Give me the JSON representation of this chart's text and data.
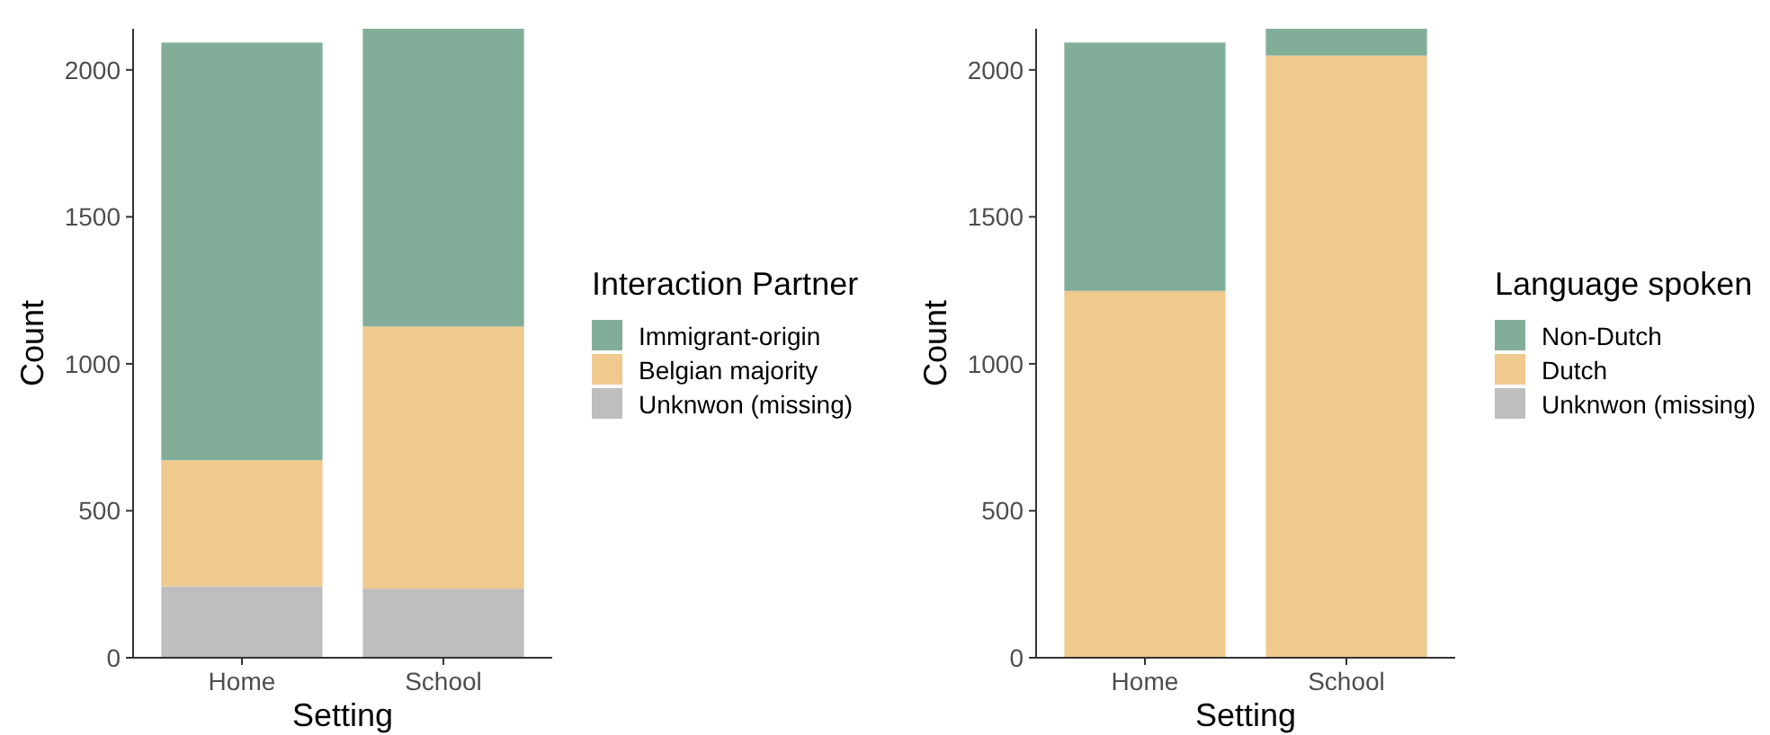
{
  "chart_data": [
    {
      "type": "bar",
      "stacked": true,
      "xlabel": "Setting",
      "ylabel": "Count",
      "legend_title": "Interaction Partner",
      "legend": "right",
      "categories": [
        "Home",
        "School"
      ],
      "ylim": [
        0,
        2140
      ],
      "yticks": [
        0,
        500,
        1000,
        1500,
        2000
      ],
      "series": [
        {
          "name": "Unknwon (missing)",
          "color": "#bebebe",
          "values": [
            243,
            235
          ]
        },
        {
          "name": "Belgian majority",
          "color": "#f0c98e",
          "values": [
            429,
            892
          ]
        },
        {
          "name": "Immigrant-origin",
          "color": "#82ae99",
          "values": [
            1421,
            1013
          ]
        }
      ]
    },
    {
      "type": "bar",
      "stacked": true,
      "xlabel": "Setting",
      "ylabel": "Count",
      "legend_title": "Language spoken",
      "legend": "right",
      "categories": [
        "Home",
        "School"
      ],
      "ylim": [
        0,
        2140
      ],
      "yticks": [
        0,
        500,
        1000,
        1500,
        2000
      ],
      "series": [
        {
          "name": "Unknwon (missing)",
          "color": "#bebebe",
          "values": [
            0,
            0
          ]
        },
        {
          "name": "Dutch",
          "color": "#f0c98e",
          "values": [
            1248,
            2049
          ]
        },
        {
          "name": "Non-Dutch",
          "color": "#82ae99",
          "values": [
            845,
            91
          ]
        }
      ]
    }
  ]
}
